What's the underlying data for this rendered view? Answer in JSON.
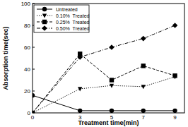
{
  "chart_data": {
    "type": "line",
    "x_label": "Treatment time(min)",
    "y_label": "Absorption time(sec)",
    "x": [
      0,
      3,
      5,
      7,
      9
    ],
    "series": [
      {
        "name": "Untreated",
        "color": "#000000",
        "marker": "circle",
        "line_style": "solid",
        "values": [
          16,
          2,
          2,
          2,
          2
        ]
      },
      {
        "name": "0.10%  Treated",
        "color": "#000000",
        "marker": "triangle_down",
        "line_style": "dotted",
        "values": [
          0,
          22,
          25,
          24,
          33
        ]
      },
      {
        "name": "0.25%  Treated",
        "color": "#000000",
        "marker": "square",
        "line_style": "dashed",
        "values": [
          0,
          54,
          30,
          43,
          34
        ]
      },
      {
        "name": "0.50%  Treated",
        "color": "#000000",
        "marker": "diamond",
        "line_style": "dashdot",
        "values": [
          0,
          51,
          60,
          68,
          80
        ]
      }
    ],
    "xlim": [
      0,
      9.6
    ],
    "xticks": [
      0,
      3,
      5,
      7,
      9
    ],
    "ylim": [
      0,
      100
    ],
    "yticks": [
      0,
      20,
      40,
      60,
      80,
      100
    ],
    "grid": false,
    "legend": "upper left"
  }
}
